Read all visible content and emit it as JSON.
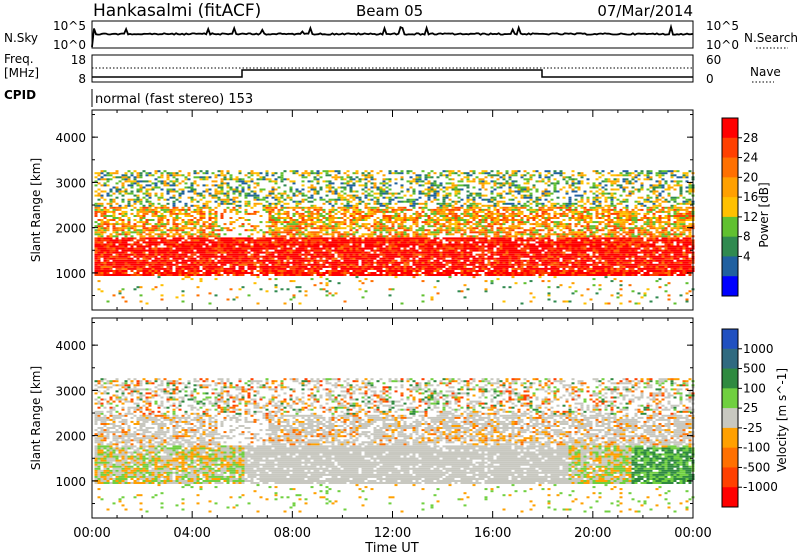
{
  "header": {
    "station": "Hankasalmi (fitACF)",
    "beam": "Beam 05",
    "date": "07/Mar/2014"
  },
  "noise_panel": {
    "left_label": "N.Sky",
    "right_label": "N.Search",
    "left_ticks": [
      "10^5",
      "10^0"
    ],
    "right_ticks": [
      "10^5",
      "10^0"
    ]
  },
  "freq_panel": {
    "left_label_1": "Freq.",
    "left_label_2": "[MHz]",
    "left_ticks": [
      "18",
      "8"
    ],
    "right_label": "Nave",
    "right_ticks": [
      "60",
      "0"
    ]
  },
  "cpid_panel": {
    "label": "CPID",
    "text": "normal (fast stereo) 153"
  },
  "chart_data": [
    {
      "type": "heatmap",
      "name": "power-panel",
      "x_ticks": [
        "00:00",
        "04:00",
        "08:00",
        "12:00",
        "16:00",
        "20:00",
        "00:00"
      ],
      "x_range_hours": [
        0,
        24
      ],
      "ylabel": "Slant Range [km]",
      "ylim": [
        180,
        4600
      ],
      "y_ticks": [
        1000,
        2000,
        3000,
        4000
      ],
      "colorbar": {
        "label": "Power [dB]",
        "ticks": [
          "28",
          "24",
          "20",
          "16",
          "12",
          "8",
          "4"
        ],
        "colors": [
          "#ff0000",
          "#ff4000",
          "#ff7000",
          "#ffa000",
          "#ffc000",
          "#60c030",
          "#308a50",
          "#2060a0",
          "#0000ff"
        ]
      },
      "bands": [
        {
          "name": "main-echo",
          "x_start_h": 0,
          "x_end_h": 24,
          "y_from_km": 1000,
          "y_to_km": 1700,
          "level": "high"
        },
        {
          "name": "upper-band",
          "x_start_h": 0,
          "x_end_h": 24,
          "y_from_km": 1700,
          "y_to_km": 2400,
          "level": "mid"
        },
        {
          "name": "far-range",
          "x_start_h": 0,
          "x_end_h": 24,
          "y_from_km": 2400,
          "y_to_km": 3200,
          "level": "low"
        }
      ]
    },
    {
      "type": "heatmap",
      "name": "velocity-panel",
      "x_ticks": [
        "00:00",
        "04:00",
        "08:00",
        "12:00",
        "16:00",
        "20:00",
        "00:00"
      ],
      "x_range_hours": [
        0,
        24
      ],
      "xlabel": "Time UT",
      "ylabel": "Slant Range [km]",
      "ylim": [
        180,
        4600
      ],
      "y_ticks": [
        1000,
        2000,
        3000,
        4000
      ],
      "colorbar": {
        "label": "Velocity [m s^-1]",
        "ticks": [
          "1000",
          "500",
          "100",
          "25",
          "-25",
          "-100",
          "-500",
          "-1000"
        ],
        "colors": [
          "#2050c0",
          "#306a80",
          "#2f8a40",
          "#70d040",
          "#c8c8c0",
          "#ffa000",
          "#ff7000",
          "#ff4000",
          "#ff0000"
        ]
      }
    }
  ],
  "colors": {
    "axis": "#000000",
    "ground_scatter": "#c8c8c0"
  }
}
